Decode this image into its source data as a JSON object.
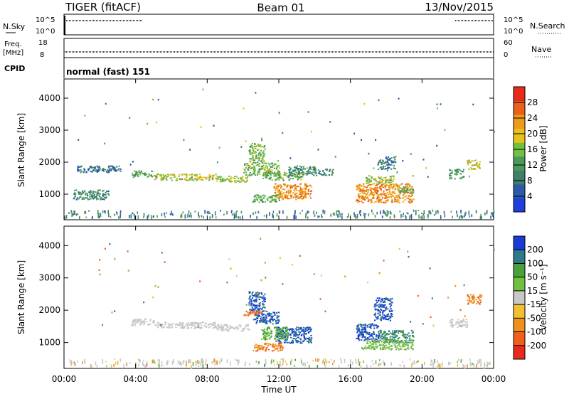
{
  "header": {
    "radar": "TIGER (fitACF)",
    "beam": "Beam 01",
    "date": "13/Nov/2015"
  },
  "nsky_panel": {
    "left_label": "N.Sky",
    "right_label": "N.Search",
    "left_ticks": [
      "10^5",
      "10^0"
    ],
    "right_ticks": [
      "10^5",
      "10^0"
    ]
  },
  "freq_panel": {
    "left_label_1": "Freq.",
    "left_label_2": "[MHz]",
    "right_label": "Nave",
    "left_ticks": [
      "18",
      "8"
    ],
    "right_ticks": [
      "60",
      "0"
    ]
  },
  "cpid_panel": {
    "label": "CPID",
    "text": "normal (fast) 151"
  },
  "colors": {
    "power": [
      "#1f3fdc",
      "#2a5aa8",
      "#3f7f6a",
      "#4a9a5a",
      "#72c040",
      "#e8c21a",
      "#f09a1a",
      "#e8601a",
      "#e82a1a"
    ],
    "velocity": [
      "#e82a1a",
      "#f0601a",
      "#f0901a",
      "#f0c030",
      "#c8c8c8",
      "#72c040",
      "#4aa03a",
      "#2c7a8a",
      "#1a3ad8"
    ]
  },
  "chart_data": [
    {
      "type": "heatmap",
      "name": "power",
      "ylabel": "Slant Range [km]",
      "yticks": [
        1000,
        2000,
        3000,
        4000
      ],
      "ylim": [
        200,
        4600
      ],
      "colorbar": {
        "label": "Power [dB]",
        "ticks": [
          4,
          8,
          12,
          16,
          20,
          24,
          28
        ],
        "range": [
          0,
          32
        ]
      },
      "patches": [
        {
          "t": [
            3.7,
            5.0
          ],
          "r": [
            1550,
            1750
          ],
          "v": 12
        },
        {
          "t": [
            5.0,
            8.5
          ],
          "r": [
            1450,
            1650
          ],
          "v": 18
        },
        {
          "t": [
            8.5,
            10.3
          ],
          "r": [
            1380,
            1580
          ],
          "v": 17
        },
        {
          "t": [
            10.3,
            11.2
          ],
          "r": [
            2000,
            2600
          ],
          "v": 15
        },
        {
          "t": [
            10.0,
            12.0
          ],
          "r": [
            1600,
            2000
          ],
          "v": 15
        },
        {
          "t": [
            11.7,
            13.8
          ],
          "r": [
            850,
            1350
          ],
          "v": 24
        },
        {
          "t": [
            11.0,
            13.3
          ],
          "r": [
            1450,
            1700
          ],
          "v": 14
        },
        {
          "t": [
            10.5,
            12.0
          ],
          "r": [
            750,
            1000
          ],
          "v": 13
        },
        {
          "t": [
            12.5,
            14.0
          ],
          "r": [
            1600,
            1900
          ],
          "v": 10
        },
        {
          "t": [
            14.0,
            15.0
          ],
          "r": [
            1600,
            1800
          ],
          "v": 9
        },
        {
          "t": [
            16.3,
            19.5
          ],
          "r": [
            750,
            1350
          ],
          "v": 24
        },
        {
          "t": [
            16.8,
            18.4
          ],
          "r": [
            1350,
            1600
          ],
          "v": 16
        },
        {
          "t": [
            18.6,
            19.5
          ],
          "r": [
            1050,
            1250
          ],
          "v": 14
        },
        {
          "t": [
            17.5,
            18.5
          ],
          "r": [
            1800,
            2200
          ],
          "v": 9
        },
        {
          "t": [
            21.5,
            22.3
          ],
          "r": [
            1500,
            1800
          ],
          "v": 12
        },
        {
          "t": [
            22.5,
            23.2
          ],
          "r": [
            1800,
            2100
          ],
          "v": 18
        },
        {
          "t": [
            0.5,
            2.5
          ],
          "r": [
            850,
            1150
          ],
          "v": 10
        },
        {
          "t": [
            0.7,
            3.2
          ],
          "r": [
            1700,
            1900
          ],
          "v": 7
        }
      ]
    },
    {
      "type": "heatmap",
      "name": "velocity",
      "ylabel": "Slant Range [km]",
      "xlabel": "Time UT",
      "xticks": [
        "00:00",
        "04:00",
        "08:00",
        "12:00",
        "16:00",
        "20:00",
        "00:00"
      ],
      "xlim": [
        0,
        24
      ],
      "yticks": [
        1000,
        2000,
        3000,
        4000
      ],
      "ylim": [
        200,
        4600
      ],
      "colorbar": {
        "label": "Velocity [m s⁻¹]",
        "ticks": [
          200,
          100,
          50,
          15,
          -15,
          -50,
          -100,
          -200
        ]
      },
      "patches": [
        {
          "t": [
            3.7,
            5.0
          ],
          "r": [
            1550,
            1750
          ],
          "v": 0
        },
        {
          "t": [
            5.0,
            8.5
          ],
          "r": [
            1450,
            1650
          ],
          "v": 0
        },
        {
          "t": [
            8.5,
            10.3
          ],
          "r": [
            1380,
            1580
          ],
          "v": 0
        },
        {
          "t": [
            10.3,
            11.2
          ],
          "r": [
            2000,
            2600
          ],
          "v": 200
        },
        {
          "t": [
            10.5,
            12.0
          ],
          "r": [
            1600,
            2000
          ],
          "v": 200
        },
        {
          "t": [
            11.8,
            13.8
          ],
          "r": [
            1000,
            1500
          ],
          "v": 220
        },
        {
          "t": [
            11.0,
            12.5
          ],
          "r": [
            1100,
            1500
          ],
          "v": 60
        },
        {
          "t": [
            10.5,
            12.2
          ],
          "r": [
            750,
            1000
          ],
          "v": -90
        },
        {
          "t": [
            10.0,
            11.0
          ],
          "r": [
            1850,
            2000
          ],
          "v": -120
        },
        {
          "t": [
            16.3,
            17.6
          ],
          "r": [
            1050,
            1600
          ],
          "v": 220
        },
        {
          "t": [
            17.6,
            19.5
          ],
          "r": [
            1000,
            1400
          ],
          "v": 120
        },
        {
          "t": [
            16.6,
            19.5
          ],
          "r": [
            800,
            1100
          ],
          "v": 30
        },
        {
          "t": [
            17.3,
            18.3
          ],
          "r": [
            1700,
            2400
          ],
          "v": 210
        },
        {
          "t": [
            21.5,
            22.5
          ],
          "r": [
            1500,
            1750
          ],
          "v": 0
        },
        {
          "t": [
            22.5,
            23.3
          ],
          "r": [
            2200,
            2500
          ],
          "v": -90
        }
      ]
    }
  ]
}
